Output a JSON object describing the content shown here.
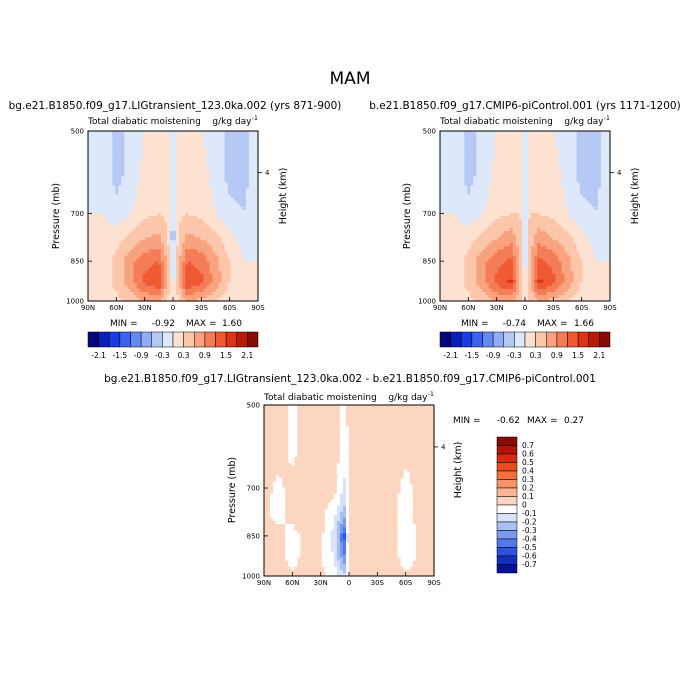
{
  "figure": {
    "season": "MAM"
  },
  "chart_data": [
    {
      "type": "heatmap",
      "title": "bg.e21.B1850.f09_g17.LIGtransient_123.0ka.002 (yrs 871-900)",
      "subtitle_left": "Total diabatic moistening",
      "subtitle_right": "g/kg day",
      "subtitle_unit_exp": "-1",
      "ylabel": "Pressure (mb)",
      "ylabel_right": "Height (km)",
      "x_ticks": [
        "90N",
        "60N",
        "30N",
        "0",
        "30S",
        "60S",
        "90S"
      ],
      "y_ticks": [
        "500",
        "700",
        "850",
        "1000"
      ],
      "y_right_ticks": [
        "4"
      ],
      "xlim": [
        90,
        -90
      ],
      "ylim": [
        1000,
        500
      ],
      "min_label": "MIN =",
      "min_value": "-0.92",
      "max_label": "MAX =",
      "max_value": "1.60",
      "colorbar_labels": [
        "-2.1",
        "-1.5",
        "-0.9",
        "-0.3",
        "0.3",
        "0.9",
        "1.5",
        "2.1"
      ],
      "colorbar_colors": [
        "#08087a",
        "#0b1fb8",
        "#1a3ce0",
        "#3b63ef",
        "#6489f2",
        "#8fabf2",
        "#b6c9f5",
        "#dde8fb",
        "#fde2d2",
        "#fbc6aa",
        "#f8a27f",
        "#f47d57",
        "#ef5a34",
        "#dd3417",
        "#b81a0a",
        "#8a0a04"
      ],
      "levels": [
        -2.1,
        -1.8,
        -1.5,
        -1.2,
        -0.9,
        -0.6,
        -0.3,
        0,
        0.3,
        0.6,
        0.9,
        1.2,
        1.5,
        1.8,
        2.1
      ],
      "field": {
        "x_lat": [
          90,
          75,
          60,
          45,
          30,
          15,
          5,
          0,
          -5,
          -15,
          -30,
          -45,
          -60,
          -75,
          -90
        ],
        "y_pressure": [
          500,
          600,
          700,
          775,
          850,
          925,
          1000
        ],
        "values": [
          [
            0.0,
            -0.1,
            -0.4,
            -0.2,
            0.0,
            0.1,
            0.0,
            -0.2,
            0.0,
            0.1,
            0.0,
            -0.1,
            -0.4,
            -0.4,
            0.0
          ],
          [
            0.0,
            -0.1,
            -0.4,
            -0.2,
            0.1,
            0.2,
            0.1,
            -0.3,
            0.1,
            0.2,
            0.1,
            -0.1,
            -0.4,
            -0.4,
            -0.1
          ],
          [
            0.0,
            0.0,
            -0.2,
            0.0,
            0.2,
            0.3,
            0.2,
            -0.5,
            0.2,
            0.3,
            0.2,
            0.0,
            -0.2,
            -0.3,
            -0.1
          ],
          [
            0.0,
            0.1,
            0.2,
            0.4,
            0.6,
            0.7,
            0.3,
            -0.6,
            0.3,
            0.7,
            0.6,
            0.4,
            0.1,
            -0.1,
            0.0
          ],
          [
            0.0,
            0.1,
            0.4,
            0.8,
            1.1,
            1.2,
            0.4,
            -0.4,
            0.4,
            1.2,
            1.1,
            0.7,
            0.3,
            0.0,
            0.0
          ],
          [
            0.0,
            0.1,
            0.4,
            0.8,
            1.3,
            1.5,
            0.5,
            -0.2,
            0.5,
            1.5,
            1.3,
            0.8,
            0.3,
            0.0,
            0.0
          ],
          [
            0.0,
            0.1,
            0.2,
            0.4,
            0.6,
            0.6,
            0.2,
            0.0,
            0.2,
            0.6,
            0.5,
            0.3,
            0.1,
            0.0,
            0.0
          ]
        ]
      }
    },
    {
      "type": "heatmap",
      "title": "b.e21.B1850.f09_g17.CMIP6-piControl.001 (yrs 1171-1200)",
      "subtitle_left": "Total diabatic moistening",
      "subtitle_right": "g/kg day",
      "subtitle_unit_exp": "-1",
      "ylabel": "Pressure (mb)",
      "ylabel_right": "Height (km)",
      "x_ticks": [
        "90N",
        "60N",
        "30N",
        "0",
        "30S",
        "60S",
        "90S"
      ],
      "y_ticks": [
        "500",
        "700",
        "850",
        "1000"
      ],
      "y_right_ticks": [
        "4"
      ],
      "xlim": [
        90,
        -90
      ],
      "ylim": [
        1000,
        500
      ],
      "min_label": "MIN =",
      "min_value": "-0.74",
      "max_label": "MAX =",
      "max_value": "1.66",
      "colorbar_labels": [
        "-2.1",
        "-1.5",
        "-0.9",
        "-0.3",
        "0.3",
        "0.9",
        "1.5",
        "2.1"
      ],
      "colorbar_colors": [
        "#08087a",
        "#0b1fb8",
        "#1a3ce0",
        "#3b63ef",
        "#6489f2",
        "#8fabf2",
        "#b6c9f5",
        "#dde8fb",
        "#fde2d2",
        "#fbc6aa",
        "#f8a27f",
        "#f47d57",
        "#ef5a34",
        "#dd3417",
        "#b81a0a",
        "#8a0a04"
      ],
      "levels": [
        -2.1,
        -1.8,
        -1.5,
        -1.2,
        -0.9,
        -0.6,
        -0.3,
        0,
        0.3,
        0.6,
        0.9,
        1.2,
        1.5,
        1.8,
        2.1
      ],
      "field": {
        "x_lat": [
          90,
          75,
          60,
          45,
          30,
          15,
          5,
          0,
          -5,
          -15,
          -30,
          -45,
          -60,
          -75,
          -90
        ],
        "y_pressure": [
          500,
          600,
          700,
          775,
          850,
          925,
          1000
        ],
        "values": [
          [
            0.0,
            -0.1,
            -0.4,
            -0.2,
            0.0,
            0.1,
            0.1,
            -0.1,
            0.1,
            0.1,
            0.0,
            -0.1,
            -0.4,
            -0.4,
            0.0
          ],
          [
            0.0,
            -0.1,
            -0.4,
            -0.2,
            0.1,
            0.2,
            0.2,
            -0.2,
            0.2,
            0.2,
            0.1,
            -0.1,
            -0.4,
            -0.4,
            -0.1
          ],
          [
            0.0,
            0.0,
            -0.2,
            0.0,
            0.2,
            0.3,
            0.3,
            -0.3,
            0.3,
            0.3,
            0.2,
            0.0,
            -0.2,
            -0.3,
            -0.1
          ],
          [
            0.0,
            0.1,
            0.2,
            0.4,
            0.6,
            0.8,
            0.4,
            -0.4,
            0.4,
            0.8,
            0.6,
            0.4,
            0.1,
            -0.1,
            0.0
          ],
          [
            0.0,
            0.1,
            0.4,
            0.8,
            1.1,
            1.3,
            0.5,
            -0.3,
            0.5,
            1.3,
            1.1,
            0.7,
            0.3,
            0.0,
            0.0
          ],
          [
            0.0,
            0.1,
            0.4,
            0.8,
            1.3,
            1.6,
            0.6,
            -0.1,
            0.6,
            1.6,
            1.3,
            0.8,
            0.3,
            0.0,
            0.0
          ],
          [
            0.0,
            0.1,
            0.2,
            0.4,
            0.6,
            0.7,
            0.3,
            0.1,
            0.3,
            0.6,
            0.5,
            0.3,
            0.1,
            0.0,
            0.0
          ]
        ]
      }
    },
    {
      "type": "heatmap",
      "title": "bg.e21.B1850.f09_g17.LIGtransient_123.0ka.002 - b.e21.B1850.f09_g17.CMIP6-piControl.001",
      "subtitle_left": "Total diabatic moistening",
      "subtitle_right": "g/kg day",
      "subtitle_unit_exp": "-1",
      "ylabel": "Pressure (mb)",
      "ylabel_right": "Height (km)",
      "x_ticks": [
        "90N",
        "60N",
        "30N",
        "0",
        "30S",
        "60S",
        "90S"
      ],
      "y_ticks": [
        "500",
        "700",
        "850",
        "1000"
      ],
      "y_right_ticks": [
        "4"
      ],
      "xlim": [
        90,
        -90
      ],
      "ylim": [
        1000,
        500
      ],
      "min_label": "MIN =",
      "min_value": "-0.62",
      "max_label": "MAX =",
      "max_value": "0.27",
      "colorbar_labels": [
        "0.7",
        "0.6",
        "0.5",
        "0.4",
        "0.3",
        "0.2",
        "0.1",
        "0",
        "-0.1",
        "-0.2",
        "-0.3",
        "-0.4",
        "-0.5",
        "-0.6",
        "-0.7"
      ],
      "colorbar_colors": [
        "#8a0a04",
        "#b31407",
        "#d62a0e",
        "#ec4a22",
        "#f3703f",
        "#f69266",
        "#f9b595",
        "#fcd6c1",
        "#ffffff",
        "#d5e2f8",
        "#a8c0f2",
        "#7b9aee",
        "#5277ec",
        "#2c50e0",
        "#142fc0",
        "#08109a"
      ],
      "levels": [
        -0.7,
        -0.6,
        -0.5,
        -0.4,
        -0.3,
        -0.2,
        -0.1,
        0,
        0.1,
        0.2,
        0.3,
        0.4,
        0.5,
        0.6,
        0.7
      ],
      "field": {
        "x_lat": [
          90,
          75,
          60,
          45,
          30,
          15,
          5,
          0,
          -5,
          -15,
          -30,
          -45,
          -60,
          -75,
          -90
        ],
        "y_pressure": [
          500,
          600,
          700,
          775,
          850,
          925,
          1000
        ],
        "values": [
          [
            0.05,
            0.08,
            -0.03,
            0.05,
            0.06,
            0.04,
            -0.05,
            0.03,
            0.04,
            0.05,
            0.06,
            0.08,
            0.02,
            0.04,
            0.0
          ],
          [
            0.06,
            0.08,
            -0.04,
            0.06,
            0.07,
            0.05,
            -0.06,
            0.02,
            0.05,
            0.06,
            0.07,
            0.07,
            0.03,
            0.05,
            0.0
          ],
          [
            0.05,
            -0.04,
            0.06,
            0.07,
            0.06,
            0.04,
            -0.12,
            0.05,
            0.06,
            0.07,
            0.06,
            0.05,
            -0.04,
            0.05,
            0.0
          ],
          [
            0.04,
            -0.05,
            0.05,
            0.06,
            0.04,
            -0.08,
            -0.25,
            0.06,
            0.05,
            0.06,
            0.05,
            0.04,
            -0.05,
            0.04,
            0.0
          ],
          [
            0.04,
            0.05,
            -0.05,
            0.05,
            0.03,
            -0.15,
            -0.55,
            0.1,
            0.04,
            0.05,
            0.04,
            0.05,
            -0.06,
            0.03,
            0.0
          ],
          [
            0.03,
            0.04,
            -0.04,
            0.04,
            0.02,
            -0.12,
            -0.4,
            0.08,
            0.03,
            0.04,
            0.03,
            0.04,
            -0.04,
            0.02,
            0.0
          ],
          [
            0.02,
            0.03,
            0.02,
            0.03,
            0.02,
            -0.06,
            -0.15,
            0.04,
            0.02,
            0.03,
            0.02,
            0.03,
            0.02,
            0.01,
            0.0
          ]
        ]
      }
    }
  ]
}
